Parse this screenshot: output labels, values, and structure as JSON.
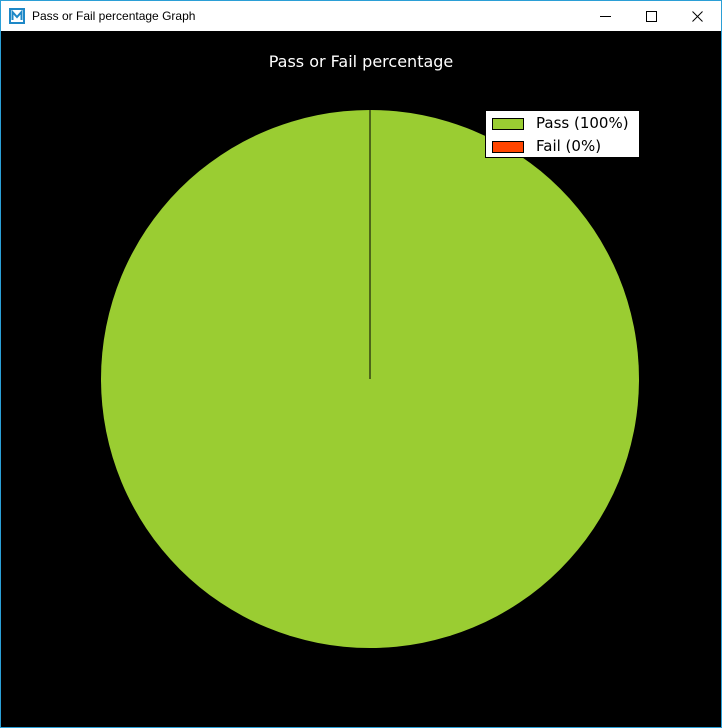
{
  "window": {
    "title": "Pass or Fail percentage Graph",
    "icon": "app-logo-icon",
    "controls": [
      "minimize-icon",
      "maximize-icon",
      "close-icon"
    ]
  },
  "colors": {
    "background": "#000000",
    "pass": "#9acd32",
    "fail": "#ff4500"
  },
  "chart_data": {
    "type": "pie",
    "title": "Pass or Fail percentage",
    "legend_position": "top-right",
    "slices": [
      {
        "label": "Pass (100%)",
        "value": 100,
        "color": "#9acd32"
      },
      {
        "label": "Fail (0%)",
        "value": 0,
        "color": "#ff4500"
      }
    ]
  }
}
